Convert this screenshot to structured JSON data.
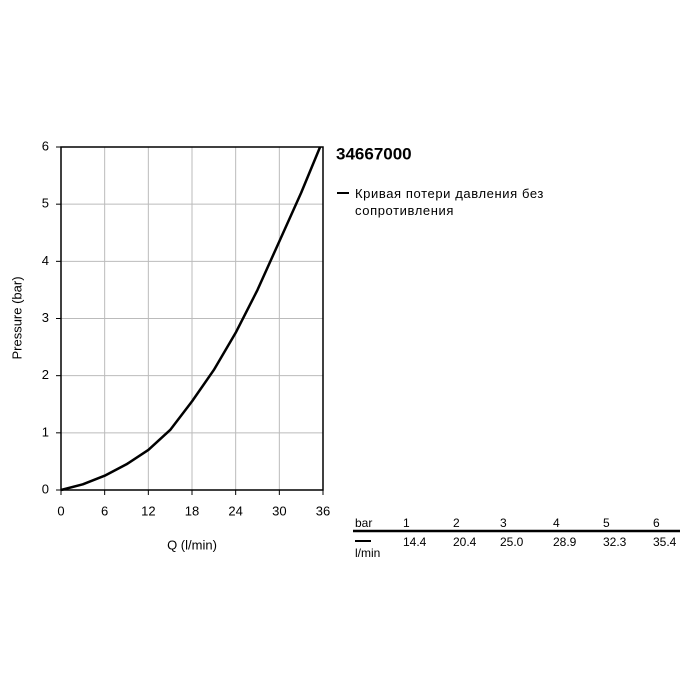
{
  "chart_data": {
    "type": "line",
    "title": "34667000",
    "x_label": "Q (l/min)",
    "y_label": "Pressure (bar)",
    "x": [
      0,
      3,
      6,
      9,
      12,
      15,
      18,
      21,
      24,
      27,
      30,
      33,
      35.6
    ],
    "series": [
      {
        "name": "Кривая потери давления без сопротивления",
        "color": "#000000",
        "values": [
          0,
          0.1,
          0.25,
          0.45,
          0.7,
          1.05,
          1.55,
          2.1,
          2.75,
          3.5,
          4.35,
          5.2,
          6
        ]
      }
    ],
    "xlim": [
      0,
      36
    ],
    "xticks": [
      0,
      6,
      12,
      18,
      24,
      30,
      36
    ],
    "ylim": [
      0,
      6
    ],
    "yticks": [
      0,
      1,
      2,
      3,
      4,
      5,
      6
    ],
    "grid": true
  },
  "table": {
    "rows": [
      [
        "bar",
        "1",
        "2",
        "3",
        "4",
        "5",
        "6"
      ],
      [
        "l/min",
        "14.4",
        "20.4",
        "25.0",
        "28.9",
        "32.3",
        "35.4"
      ]
    ]
  }
}
